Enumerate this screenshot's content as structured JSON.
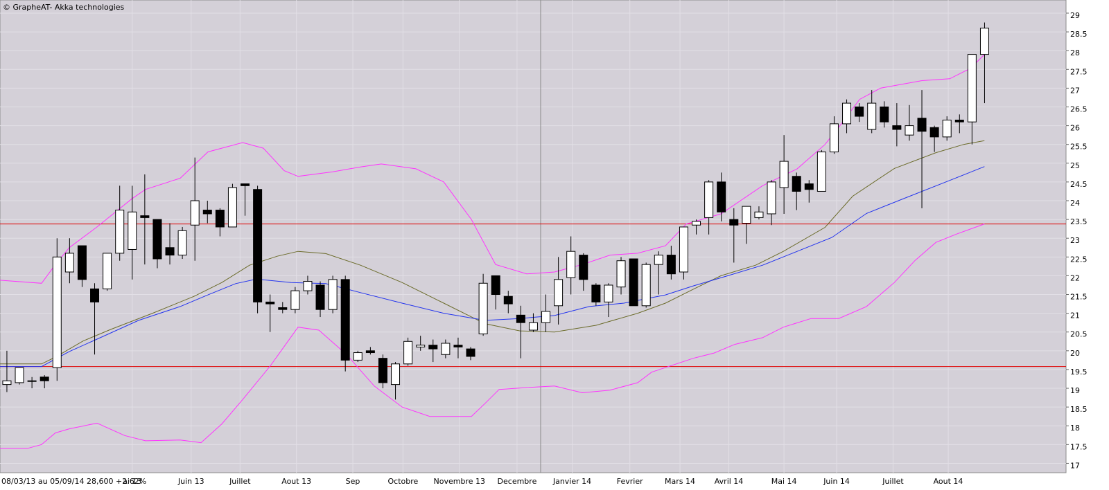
{
  "chart_data": {
    "type": "candlestick",
    "title": "© GrapheAT- Akka technologies",
    "footer": "08/03/13 au 05/09/14 28,600 +2.62%",
    "up_color": "#ffffff",
    "down_color": "#000000",
    "candles": {
      "open": [
        19.1,
        19.15,
        19.2,
        19.3,
        19.55,
        22.1,
        22.8,
        21.65,
        21.65,
        22.6,
        22.7,
        23.6,
        23.5,
        22.75,
        22.55,
        23.35,
        23.75,
        23.75,
        23.3,
        24.45,
        24.3,
        21.3,
        21.15,
        21.1,
        21.6,
        21.75,
        21.1,
        21.9,
        19.75,
        20.0,
        19.8,
        19.1,
        19.65,
        20.1,
        20.15,
        19.9,
        20.15,
        20.05,
        20.45,
        22.0,
        21.45,
        20.95,
        20.55,
        20.75,
        21.2,
        21.95,
        22.55,
        21.75,
        21.3,
        21.7,
        22.45,
        21.2,
        22.3,
        22.55,
        22.1,
        23.35,
        23.55,
        24.5,
        23.5,
        23.4,
        23.55,
        23.65,
        24.35,
        24.65,
        24.45,
        24.25,
        25.3,
        26.05,
        26.5,
        25.9,
        26.5,
        26.0,
        25.75,
        26.2,
        25.95,
        25.7,
        26.15,
        26.1,
        27.9
      ],
      "high": [
        20.0,
        19.55,
        19.3,
        19.35,
        23.0,
        23.0,
        22.8,
        21.8,
        22.6,
        24.4,
        24.4,
        24.7,
        23.5,
        23.4,
        23.3,
        25.15,
        24.0,
        23.8,
        24.45,
        24.45,
        24.4,
        21.5,
        21.3,
        21.7,
        22.0,
        21.85,
        22.0,
        22.0,
        20.0,
        20.1,
        19.9,
        19.7,
        20.35,
        20.4,
        20.3,
        20.3,
        20.35,
        20.1,
        22.05,
        22.0,
        21.6,
        21.2,
        21.0,
        21.5,
        22.5,
        23.05,
        22.6,
        21.8,
        21.8,
        22.5,
        22.45,
        22.35,
        22.65,
        22.8,
        23.3,
        23.5,
        24.55,
        24.75,
        23.8,
        23.85,
        23.85,
        24.55,
        25.75,
        24.75,
        24.55,
        25.35,
        26.25,
        26.7,
        26.6,
        26.95,
        26.65,
        26.6,
        26.55,
        26.95,
        26.0,
        26.25,
        26.3,
        27.9,
        28.75
      ],
      "low": [
        18.9,
        19.1,
        19.0,
        19.0,
        19.2,
        21.8,
        21.7,
        19.9,
        21.6,
        22.4,
        21.9,
        22.3,
        22.2,
        22.3,
        22.45,
        22.4,
        23.4,
        23.05,
        23.3,
        23.6,
        21.0,
        20.5,
        21.0,
        21.0,
        21.5,
        20.9,
        21.0,
        19.45,
        19.7,
        19.9,
        19.0,
        18.7,
        19.6,
        20.0,
        19.7,
        19.8,
        19.8,
        19.75,
        20.4,
        21.1,
        21.0,
        19.8,
        20.5,
        20.5,
        20.7,
        21.5,
        21.6,
        21.2,
        20.9,
        21.5,
        21.2,
        21.15,
        21.5,
        21.9,
        21.9,
        23.1,
        23.1,
        23.45,
        22.35,
        22.85,
        23.5,
        23.35,
        23.65,
        23.75,
        23.95,
        24.25,
        25.25,
        25.8,
        26.1,
        25.8,
        25.95,
        25.45,
        25.6,
        23.8,
        25.3,
        25.6,
        25.8,
        25.5,
        26.6
      ],
      "close": [
        19.2,
        19.55,
        19.2,
        19.2,
        22.5,
        22.6,
        21.9,
        21.3,
        22.6,
        23.75,
        23.7,
        23.55,
        22.45,
        22.55,
        23.2,
        24.0,
        23.65,
        23.3,
        24.35,
        24.4,
        21.3,
        21.25,
        21.1,
        21.6,
        21.85,
        21.1,
        21.9,
        19.75,
        19.95,
        19.95,
        19.15,
        19.65,
        20.25,
        20.15,
        20.05,
        20.2,
        20.1,
        19.85,
        21.8,
        21.5,
        21.25,
        20.75,
        20.75,
        21.05,
        21.9,
        22.65,
        21.9,
        21.3,
        21.75,
        22.4,
        21.2,
        22.3,
        22.55,
        22.05,
        23.3,
        23.45,
        24.5,
        23.7,
        23.35,
        23.85,
        23.7,
        24.5,
        25.05,
        24.25,
        24.3,
        25.3,
        26.05,
        26.6,
        26.25,
        26.6,
        26.1,
        25.9,
        26.0,
        25.85,
        25.7,
        26.15,
        26.1,
        27.9,
        28.6
      ]
    },
    "series": [
      {
        "color": "#ff33ff",
        "x": [
          -0.55,
          2.77,
          3.87,
          4.98,
          7.19,
          9.96,
          11.06,
          13.83,
          16.04,
          18.81,
          20.46,
          22.12,
          23.23,
          26.0,
          28.21,
          29.87,
          32.63,
          34.85,
          37.06,
          38.99,
          41.48,
          43.69,
          45.91,
          48.12,
          50.33,
          52.54,
          54.2,
          56.97,
          60.29,
          63.05,
          65.27,
          66.37,
          68.03,
          69.69,
          73.01,
          75.22,
          76.88,
          77.99
        ],
        "values": [
          21.88,
          21.8,
          22.3,
          22.75,
          23.3,
          24.05,
          24.3,
          24.6,
          25.3,
          25.55,
          25.4,
          24.8,
          24.65,
          24.77,
          24.9,
          24.98,
          24.85,
          24.5,
          23.5,
          22.3,
          22.05,
          22.1,
          22.3,
          22.55,
          22.6,
          22.8,
          23.38,
          23.65,
          24.4,
          24.85,
          25.5,
          25.96,
          26.7,
          27.0,
          27.2,
          27.25,
          27.53,
          27.9
        ]
      },
      {
        "color": "#ff33ff",
        "x": [
          -0.55,
          1.66,
          2.77,
          3.87,
          4.98,
          7.19,
          9.4,
          11.06,
          13.83,
          15.49,
          17.15,
          18.81,
          21.02,
          23.23,
          24.89,
          27.1,
          29.31,
          31.53,
          33.74,
          37.06,
          38.16,
          39.27,
          41.48,
          43.69,
          45.91,
          48.12,
          50.33,
          51.44,
          54.76,
          56.42,
          58.07,
          60.29,
          61.95,
          64.16,
          66.37,
          68.58,
          70.8,
          72.46,
          74.12,
          75.77,
          77.99
        ],
        "values": [
          17.4,
          17.4,
          17.5,
          17.81,
          17.92,
          18.07,
          17.74,
          17.6,
          17.62,
          17.55,
          18.05,
          18.7,
          19.6,
          20.63,
          20.55,
          19.9,
          19.06,
          18.5,
          18.25,
          18.25,
          18.6,
          18.97,
          19.02,
          19.06,
          18.88,
          18.95,
          19.15,
          19.43,
          19.8,
          19.94,
          20.17,
          20.35,
          20.63,
          20.86,
          20.86,
          21.18,
          21.82,
          22.41,
          22.89,
          23.11,
          23.38
        ]
      },
      {
        "color": "#6b6b2a",
        "x": [
          -0.55,
          2.77,
          3.87,
          6.08,
          8.3,
          11.62,
          14.93,
          17.15,
          19.36,
          21.57,
          23.23,
          25.44,
          28.21,
          31.53,
          34.85,
          38.16,
          40.93,
          43.69,
          47.01,
          50.33,
          52.54,
          54.76,
          56.97,
          59.73,
          61.95,
          65.27,
          67.48,
          70.8,
          74.12,
          76.33,
          77.99
        ],
        "values": [
          19.65,
          19.65,
          19.83,
          20.26,
          20.57,
          21.0,
          21.45,
          21.82,
          22.28,
          22.52,
          22.65,
          22.59,
          22.28,
          21.82,
          21.27,
          20.72,
          20.53,
          20.5,
          20.68,
          21.0,
          21.27,
          21.64,
          22.0,
          22.28,
          22.65,
          23.29,
          24.12,
          24.86,
          25.28,
          25.5,
          25.6
        ]
      },
      {
        "color": "#2233ee",
        "x": [
          -0.55,
          2.77,
          4.98,
          7.19,
          10.51,
          13.83,
          16.04,
          18.25,
          19.91,
          22.68,
          25.44,
          28.21,
          31.53,
          34.85,
          38.16,
          40.93,
          43.69,
          46.46,
          49.23,
          52.54,
          54.76,
          57.52,
          60.29,
          63.05,
          65.82,
          68.58,
          71.35,
          75.22,
          77.99
        ],
        "values": [
          19.58,
          19.58,
          19.98,
          20.31,
          20.81,
          21.18,
          21.49,
          21.79,
          21.91,
          21.82,
          21.79,
          21.55,
          21.27,
          21.0,
          20.81,
          20.86,
          20.94,
          21.18,
          21.27,
          21.49,
          21.73,
          22.0,
          22.28,
          22.65,
          23.02,
          23.66,
          24.03,
          24.54,
          24.91
        ]
      }
    ],
    "hlines": [
      23.38,
      19.58
    ],
    "hline_color": "#e00000",
    "xlim": [
      -0.55,
      84.5
    ],
    "ylim": [
      16.75,
      29.35
    ],
    "yticks": [
      17,
      17.5,
      18,
      18.5,
      19,
      19.5,
      20,
      20.5,
      21,
      21.5,
      22,
      22.5,
      23,
      23.5,
      24,
      24.5,
      25,
      25.5,
      26,
      26.5,
      27,
      27.5,
      28,
      28.5,
      29
    ],
    "xticks": [
      {
        "value": 10.0,
        "label": "ai 13"
      },
      {
        "value": 14.7,
        "label": "Juin 13"
      },
      {
        "value": 18.6,
        "label": "Juillet"
      },
      {
        "value": 23.1,
        "label": "Aout 13"
      },
      {
        "value": 27.6,
        "label": "Sep"
      },
      {
        "value": 31.6,
        "label": "Octobre"
      },
      {
        "value": 36.1,
        "label": "Novembre 13"
      },
      {
        "value": 40.7,
        "label": "Decembre"
      },
      {
        "value": 45.1,
        "label": "Janvier 14"
      },
      {
        "value": 49.7,
        "label": "Fevrier"
      },
      {
        "value": 53.7,
        "label": "Mars 14"
      },
      {
        "value": 57.6,
        "label": "Avril 14"
      },
      {
        "value": 62.0,
        "label": "Mai 14"
      },
      {
        "value": 66.2,
        "label": "Juin 14"
      },
      {
        "value": 70.7,
        "label": "Juillet"
      },
      {
        "value": 75.1,
        "label": "Aout 14"
      }
    ],
    "grid": true
  }
}
